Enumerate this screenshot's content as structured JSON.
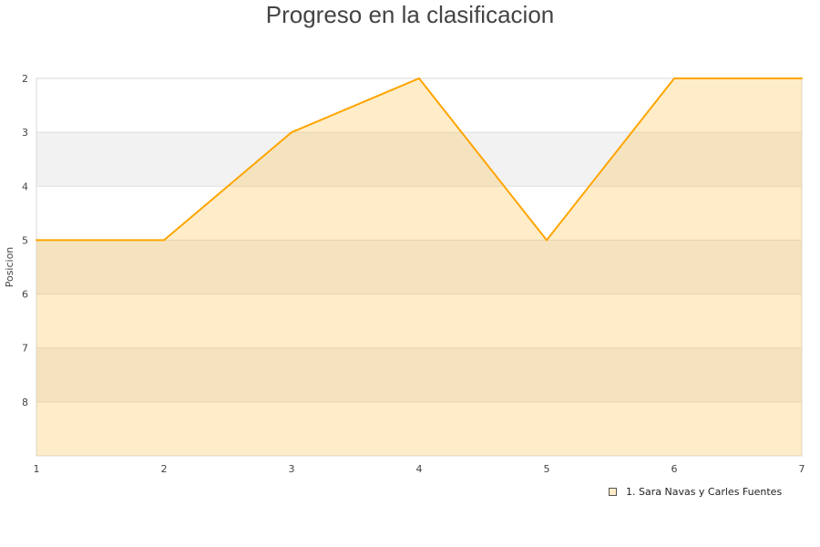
{
  "chart_data": {
    "type": "area",
    "title": "Progreso en la clasificacion",
    "ylabel": "Posicion",
    "xlabel": "",
    "x": [
      1,
      2,
      3,
      4,
      5,
      6,
      7
    ],
    "xlim": [
      1,
      7
    ],
    "ylim": [
      2,
      9
    ],
    "y_inverted": true,
    "yticks": [
      2,
      3,
      4,
      5,
      6,
      7,
      8
    ],
    "grid": true,
    "legend": "bottom-right",
    "series": [
      {
        "name": "1. Sara Navas y Carles Fuentes",
        "values": [
          5,
          5,
          3,
          2,
          5,
          2,
          2
        ],
        "color": "#FFA500",
        "fill": "#FFEBC8"
      }
    ]
  }
}
